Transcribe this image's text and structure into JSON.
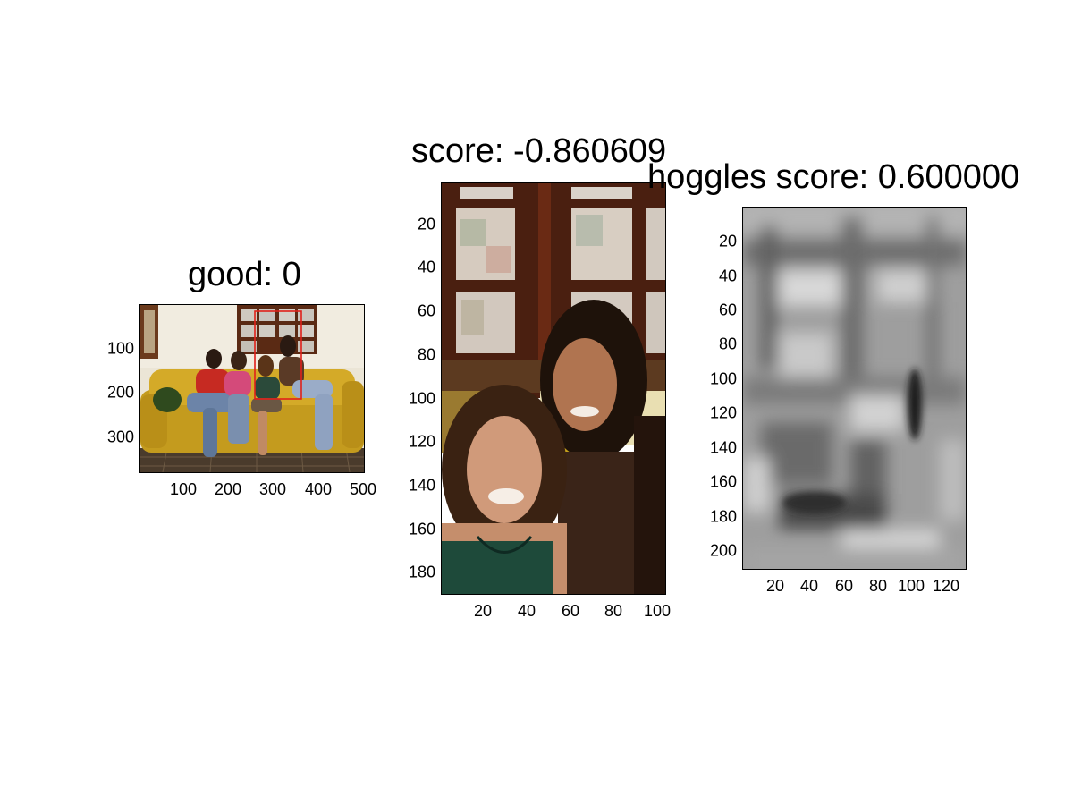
{
  "panels": [
    {
      "name": "overview",
      "title": "good: 0",
      "image": "group photo of four women on a yellow sofa with red detection box",
      "xticks": [
        "100",
        "200",
        "300",
        "400",
        "500"
      ],
      "yticks": [
        "100",
        "200",
        "300"
      ]
    },
    {
      "name": "crop",
      "title": "score: -0.860609",
      "image": "cropped detection window of two smiling women",
      "xticks": [
        "20",
        "40",
        "60",
        "80",
        "100"
      ],
      "yticks": [
        "20",
        "40",
        "60",
        "80",
        "100",
        "120",
        "140",
        "160",
        "180"
      ]
    },
    {
      "name": "hoggles",
      "title": "hoggles score: 0.600000",
      "image": "grayscale HOG inverse visualization",
      "xticks": [
        "20",
        "40",
        "60",
        "80",
        "100",
        "120"
      ],
      "yticks": [
        "20",
        "40",
        "60",
        "80",
        "100",
        "120",
        "140",
        "160",
        "180",
        "200"
      ]
    }
  ],
  "colors": {
    "detection_box": "#e0201a",
    "sofa": "#c9a022",
    "wall": "#ece6d8",
    "window_frame": "#5a2a14"
  }
}
